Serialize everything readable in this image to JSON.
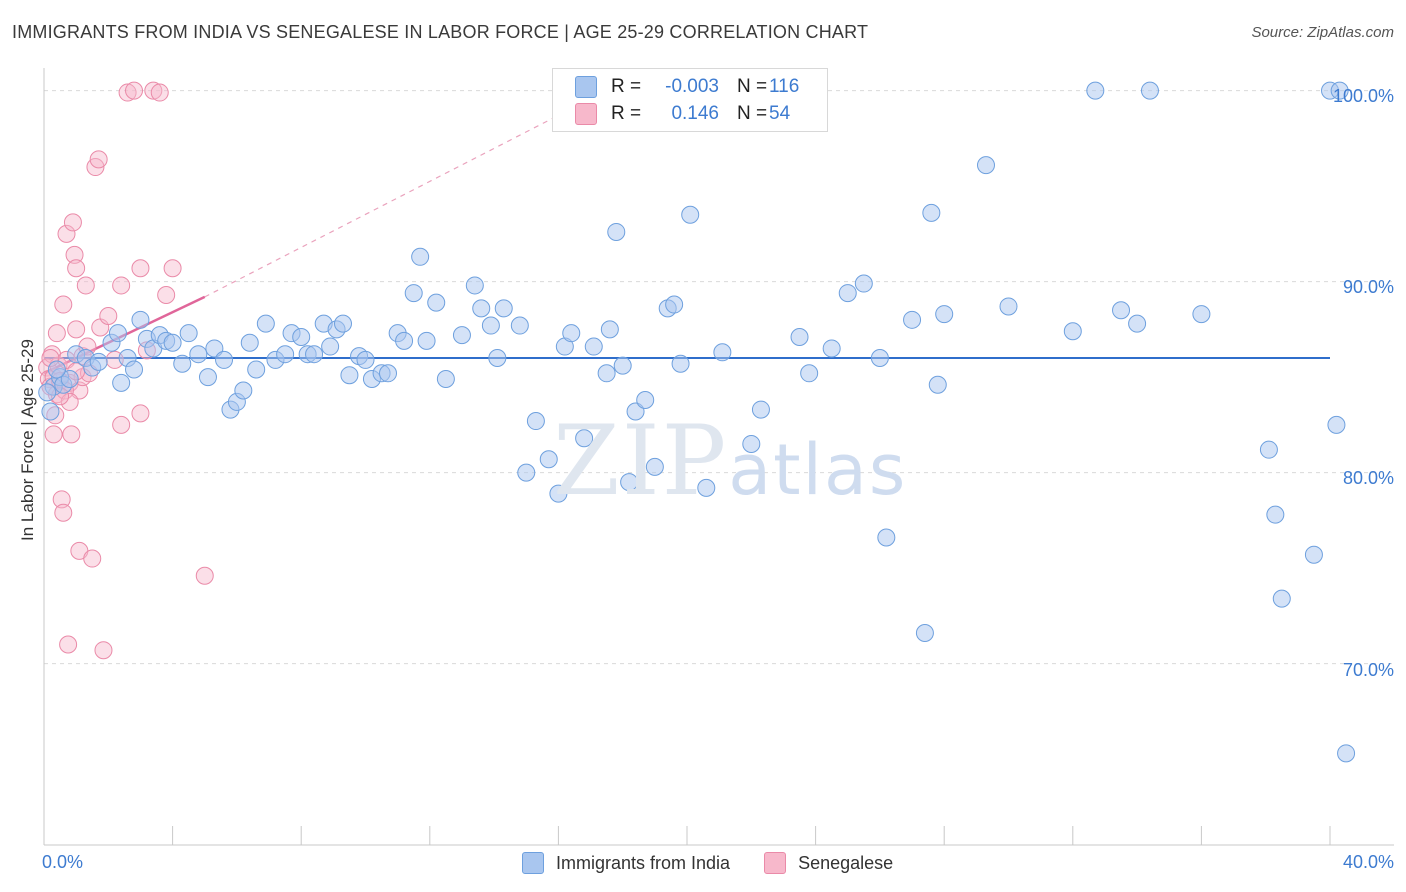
{
  "header": {
    "title": "IMMIGRANTS FROM INDIA VS SENEGALESE IN LABOR FORCE | AGE 25-29 CORRELATION CHART",
    "source": "Source: ZipAtlas.com"
  },
  "watermark": {
    "zip": "ZIP",
    "atlas": "atlas"
  },
  "legend": {
    "rows": [
      {
        "r_label": "R =",
        "r_value": "-0.003",
        "n_label": "N =",
        "n_value": "116",
        "color": "#a9c6ef"
      },
      {
        "r_label": "R =",
        "r_value": "0.146",
        "n_label": "N =",
        "n_value": "54",
        "color": "#f7b8cb"
      }
    ]
  },
  "bottom_legend": {
    "items": [
      {
        "label": "Immigrants from India",
        "color": "#a9c6ef"
      },
      {
        "label": "Senegalese",
        "color": "#f7b8cb"
      }
    ]
  },
  "chart_data": {
    "type": "scatter",
    "title": "IMMIGRANTS FROM INDIA VS SENEGALESE IN LABOR FORCE | AGE 25-29 CORRELATION CHART",
    "xlabel": "",
    "ylabel": "In Labor Force | Age 25-29",
    "xlim": [
      0,
      40
    ],
    "ylim": [
      60.5,
      101.5
    ],
    "x_tick_labels": {
      "left": "0.0%",
      "right": "40.0%"
    },
    "y_ticks": [
      {
        "value": 100,
        "label": "100.0%"
      },
      {
        "value": 90,
        "label": "90.0%"
      },
      {
        "value": 80,
        "label": "80.0%"
      },
      {
        "value": 70,
        "label": "70.0%"
      }
    ],
    "grid": "horizontal dashed",
    "legend_position": "top-center",
    "colors": {
      "india": "#6ea0de",
      "india_fill": "#a9c6ef",
      "india_line": "#2f6ecb",
      "senegal": "#ea8aa8",
      "senegal_fill": "#f7b8cb",
      "senegal_line": "#e0669a"
    },
    "series": [
      {
        "name": "Immigrants from India",
        "r": -0.003,
        "n": 116,
        "trend": {
          "x": [
            0,
            40
          ],
          "y": [
            86.0,
            86.0
          ]
        },
        "points": [
          [
            0.2,
            83.2
          ],
          [
            0.3,
            84.5
          ],
          [
            0.5,
            85.0
          ],
          [
            0.6,
            84.6
          ],
          [
            0.8,
            84.9
          ],
          [
            1.0,
            86.2
          ],
          [
            1.3,
            86.0
          ],
          [
            1.5,
            85.5
          ],
          [
            1.7,
            85.8
          ],
          [
            2.1,
            86.8
          ],
          [
            2.3,
            87.3
          ],
          [
            2.6,
            86.0
          ],
          [
            2.8,
            85.4
          ],
          [
            3.0,
            88.0
          ],
          [
            3.2,
            87.0
          ],
          [
            3.4,
            86.5
          ],
          [
            3.6,
            87.2
          ],
          [
            3.8,
            86.9
          ],
          [
            4.0,
            86.8
          ],
          [
            4.3,
            85.7
          ],
          [
            4.5,
            87.3
          ],
          [
            4.8,
            86.2
          ],
          [
            5.1,
            85.0
          ],
          [
            5.3,
            86.5
          ],
          [
            5.6,
            85.9
          ],
          [
            5.8,
            83.3
          ],
          [
            6.0,
            83.7
          ],
          [
            6.2,
            84.3
          ],
          [
            6.4,
            86.8
          ],
          [
            6.6,
            85.4
          ],
          [
            6.9,
            87.8
          ],
          [
            7.2,
            85.9
          ],
          [
            7.5,
            86.2
          ],
          [
            7.7,
            87.3
          ],
          [
            8.0,
            87.1
          ],
          [
            8.2,
            86.2
          ],
          [
            8.4,
            86.2
          ],
          [
            8.7,
            87.8
          ],
          [
            8.9,
            86.6
          ],
          [
            9.1,
            87.5
          ],
          [
            9.3,
            87.8
          ],
          [
            9.5,
            85.1
          ],
          [
            9.8,
            86.1
          ],
          [
            10.0,
            85.9
          ],
          [
            10.2,
            84.9
          ],
          [
            10.5,
            85.2
          ],
          [
            10.7,
            85.2
          ],
          [
            11.0,
            87.3
          ],
          [
            11.2,
            86.9
          ],
          [
            11.5,
            89.4
          ],
          [
            11.7,
            91.3
          ],
          [
            11.9,
            86.9
          ],
          [
            12.2,
            88.9
          ],
          [
            12.5,
            84.9
          ],
          [
            13.0,
            87.2
          ],
          [
            13.4,
            89.8
          ],
          [
            13.6,
            88.6
          ],
          [
            13.9,
            87.7
          ],
          [
            14.1,
            86.0
          ],
          [
            14.3,
            88.6
          ],
          [
            14.8,
            87.7
          ],
          [
            15.0,
            80.0
          ],
          [
            15.3,
            82.7
          ],
          [
            15.7,
            80.7
          ],
          [
            16.0,
            78.9
          ],
          [
            16.2,
            86.6
          ],
          [
            16.4,
            87.3
          ],
          [
            16.8,
            81.8
          ],
          [
            17.1,
            86.6
          ],
          [
            17.5,
            85.2
          ],
          [
            17.6,
            87.5
          ],
          [
            17.8,
            92.6
          ],
          [
            18.0,
            85.6
          ],
          [
            18.2,
            79.5
          ],
          [
            18.4,
            83.2
          ],
          [
            18.7,
            83.8
          ],
          [
            19.0,
            80.3
          ],
          [
            19.4,
            88.6
          ],
          [
            19.6,
            88.8
          ],
          [
            19.8,
            85.7
          ],
          [
            20.1,
            93.5
          ],
          [
            20.6,
            79.2
          ],
          [
            21.1,
            86.3
          ],
          [
            22.0,
            81.5
          ],
          [
            22.3,
            83.3
          ],
          [
            23.5,
            87.1
          ],
          [
            23.8,
            85.2
          ],
          [
            24.5,
            86.5
          ],
          [
            25.0,
            89.4
          ],
          [
            25.5,
            89.9
          ],
          [
            26.0,
            86.0
          ],
          [
            26.2,
            76.6
          ],
          [
            27.0,
            88.0
          ],
          [
            27.4,
            71.6
          ],
          [
            27.6,
            93.6
          ],
          [
            27.8,
            84.6
          ],
          [
            28.0,
            88.3
          ],
          [
            29.3,
            96.1
          ],
          [
            30.0,
            88.7
          ],
          [
            32.0,
            87.4
          ],
          [
            32.7,
            100.0
          ],
          [
            33.5,
            88.5
          ],
          [
            34.0,
            87.8
          ],
          [
            34.4,
            100.0
          ],
          [
            36.0,
            88.3
          ],
          [
            38.1,
            81.2
          ],
          [
            38.3,
            77.8
          ],
          [
            38.5,
            73.4
          ],
          [
            39.5,
            75.7
          ],
          [
            40.0,
            100.0
          ],
          [
            40.2,
            82.5
          ],
          [
            40.3,
            100.0
          ],
          [
            40.5,
            65.3
          ],
          [
            0.1,
            84.2
          ],
          [
            0.4,
            85.4
          ],
          [
            2.4,
            84.7
          ]
        ]
      },
      {
        "name": "Senegalese",
        "r": 0.146,
        "n": 54,
        "trend": {
          "x": [
            0,
            5
          ],
          "y": [
            85.2,
            89.2
          ]
        },
        "trend_extension": {
          "x": [
            5,
            17.5
          ],
          "y": [
            89.2,
            100.0
          ]
        },
        "points": [
          [
            0.1,
            85.5
          ],
          [
            0.15,
            84.9
          ],
          [
            0.2,
            84.5
          ],
          [
            0.25,
            86.2
          ],
          [
            0.3,
            85.0
          ],
          [
            0.3,
            82.0
          ],
          [
            0.35,
            83.0
          ],
          [
            0.4,
            84.1
          ],
          [
            0.45,
            85.6
          ],
          [
            0.5,
            84.8
          ],
          [
            0.55,
            78.6
          ],
          [
            0.6,
            77.9
          ],
          [
            0.6,
            88.8
          ],
          [
            0.7,
            92.5
          ],
          [
            0.7,
            85.9
          ],
          [
            0.75,
            71.0
          ],
          [
            0.8,
            84.7
          ],
          [
            0.85,
            82.0
          ],
          [
            0.9,
            93.1
          ],
          [
            0.95,
            91.4
          ],
          [
            1.0,
            90.7
          ],
          [
            1.0,
            87.5
          ],
          [
            1.1,
            75.9
          ],
          [
            1.1,
            84.3
          ],
          [
            1.2,
            85.0
          ],
          [
            1.2,
            86.1
          ],
          [
            1.3,
            89.8
          ],
          [
            1.35,
            86.6
          ],
          [
            1.4,
            85.2
          ],
          [
            1.5,
            75.5
          ],
          [
            1.6,
            96.0
          ],
          [
            1.7,
            96.4
          ],
          [
            1.75,
            87.6
          ],
          [
            1.85,
            70.7
          ],
          [
            2.0,
            88.2
          ],
          [
            2.2,
            85.9
          ],
          [
            2.4,
            82.5
          ],
          [
            2.4,
            89.8
          ],
          [
            2.6,
            99.9
          ],
          [
            2.8,
            100.0
          ],
          [
            3.0,
            90.7
          ],
          [
            3.0,
            83.1
          ],
          [
            3.2,
            86.4
          ],
          [
            3.4,
            100.0
          ],
          [
            3.6,
            99.9
          ],
          [
            3.8,
            89.3
          ],
          [
            4.0,
            90.7
          ],
          [
            5.0,
            74.6
          ],
          [
            0.2,
            86.0
          ],
          [
            0.4,
            87.3
          ],
          [
            0.65,
            84.3
          ],
          [
            0.8,
            83.7
          ],
          [
            1.0,
            85.3
          ],
          [
            0.5,
            84.0
          ]
        ]
      }
    ]
  }
}
